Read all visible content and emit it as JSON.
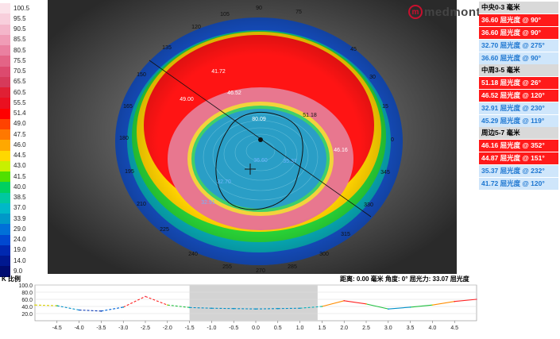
{
  "brand": {
    "logo_text": "medmont",
    "logo_mark": "m"
  },
  "scale": {
    "title": "K 比例",
    "steps": [
      {
        "v": "100.5",
        "c": "#fbe3ea"
      },
      {
        "v": "95.5",
        "c": "#f8cfdc"
      },
      {
        "v": "90.5",
        "c": "#f4b6ca"
      },
      {
        "v": "85.5",
        "c": "#f09cb6"
      },
      {
        "v": "80.5",
        "c": "#ea80a0"
      },
      {
        "v": "75.5",
        "c": "#e36486"
      },
      {
        "v": "70.5",
        "c": "#dc4a6e"
      },
      {
        "v": "65.5",
        "c": "#d63a5a"
      },
      {
        "v": "60.5",
        "c": "#e02034"
      },
      {
        "v": "55.5",
        "c": "#ea1020"
      },
      {
        "v": "51.4",
        "c": "#ff0000"
      },
      {
        "v": "49.0",
        "c": "#ff4200"
      },
      {
        "v": "47.5",
        "c": "#ff7800"
      },
      {
        "v": "46.0",
        "c": "#ffa800"
      },
      {
        "v": "44.5",
        "c": "#ffd800"
      },
      {
        "v": "43.0",
        "c": "#c8f000"
      },
      {
        "v": "41.5",
        "c": "#50e000"
      },
      {
        "v": "40.0",
        "c": "#00d060"
      },
      {
        "v": "38.5",
        "c": "#00c8a0"
      },
      {
        "v": "37.0",
        "c": "#00b8c8"
      },
      {
        "v": "33.9",
        "c": "#0098c8"
      },
      {
        "v": "29.0",
        "c": "#0070d8"
      },
      {
        "v": "24.0",
        "c": "#0048d0"
      },
      {
        "v": "19.0",
        "c": "#0028b0"
      },
      {
        "v": "14.0",
        "c": "#001890"
      },
      {
        "v": "9.0",
        "c": "#000c70"
      }
    ]
  },
  "map": {
    "degree_labels": [
      "90",
      "75",
      "105",
      "120",
      "135",
      "45",
      "150",
      "30",
      "165",
      "15",
      "180",
      "0",
      "345",
      "195",
      "210",
      "330",
      "225",
      "315",
      "240",
      "300",
      "255",
      "285",
      "270"
    ],
    "center_value": "80.09",
    "annotations": [
      "41.72",
      "46.52",
      "49.00",
      "51.18",
      "36.60",
      "46.16",
      "32.70",
      "32.91",
      "35.37"
    ],
    "contour_level": "33.07"
  },
  "panel": {
    "groups": [
      {
        "title": "中央0-3 毫米",
        "rows": [
          {
            "text": "36.60 屈光度 @ 90°",
            "tone": "red"
          },
          {
            "text": "36.60 屈光度 @ 90°",
            "tone": "red"
          },
          {
            "text": "32.70 屈光度 @ 275°",
            "tone": "blue"
          },
          {
            "text": "36.60 屈光度 @ 90°",
            "tone": "blue"
          }
        ]
      },
      {
        "title": "中周3-5 毫米",
        "rows": [
          {
            "text": "51.18 屈光度 @ 26°",
            "tone": "red"
          },
          {
            "text": "46.52 屈光度 @ 120°",
            "tone": "red"
          },
          {
            "text": "32.91 屈光度 @ 230°",
            "tone": "blue"
          },
          {
            "text": "45.29 屈光度 @ 119°",
            "tone": "blue"
          }
        ]
      },
      {
        "title": "周边5-7 毫米",
        "rows": [
          {
            "text": "46.16 屈光度 @ 352°",
            "tone": "red"
          },
          {
            "text": "44.87 屈光度 @ 151°",
            "tone": "red"
          },
          {
            "text": "35.37 屈光度 @ 232°",
            "tone": "blue"
          },
          {
            "text": "41.72 屈光度 @ 120°",
            "tone": "blue"
          }
        ]
      }
    ]
  },
  "readout": "距离: 0.00 毫米 角度: 0° 屈光力: 33.07 屈光度",
  "chart_data": {
    "type": "line",
    "xlim": [
      -5,
      5
    ],
    "ylim": [
      0,
      100
    ],
    "y_ticks": [
      "100.0",
      "80.0",
      "60.0",
      "40.0",
      "20.0"
    ],
    "x_ticks": [
      "-4.5",
      "-4.0",
      "-3.5",
      "-3.0",
      "-2.5",
      "-2.0",
      "-1.5",
      "-1.0",
      "-0.5",
      "0.0",
      "0.5",
      "1.0",
      "1.5",
      "2.0",
      "2.5",
      "3.0",
      "3.5",
      "4.0",
      "4.5"
    ],
    "highlight_range": [
      -1.5,
      1.4
    ],
    "series": [
      {
        "x": [
          -5.0,
          -4.5,
          -4.0,
          -3.5,
          -3.0,
          -2.5,
          -2.0,
          -1.5,
          -1.0,
          -0.5,
          0.0,
          0.5,
          1.0,
          1.5,
          2.0,
          2.5,
          3.0,
          3.5,
          4.0,
          4.5,
          5.0
        ],
        "y": [
          44,
          42,
          30,
          27,
          38,
          68,
          44,
          37,
          35,
          34,
          33,
          34,
          35,
          40,
          56,
          47,
          33,
          38,
          44,
          54,
          60
        ]
      }
    ]
  }
}
